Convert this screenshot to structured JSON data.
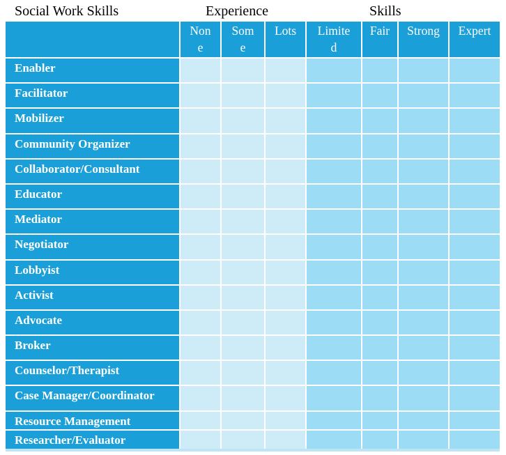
{
  "titles": {
    "main": "Social Work Skills",
    "experience_group": "Experience",
    "skills_group": "Skills"
  },
  "table": {
    "columns": [
      {
        "label": "None",
        "display": "Non\ne",
        "group": "Experience",
        "cell_shade": "light"
      },
      {
        "label": "Some",
        "display": "Som\ne",
        "group": "Experience",
        "cell_shade": "light"
      },
      {
        "label": "Lots",
        "display": "Lots",
        "group": "Experience",
        "cell_shade": "light"
      },
      {
        "label": "Limited",
        "display": "Limite\nd",
        "group": "Skills",
        "cell_shade": "medium"
      },
      {
        "label": "Fair",
        "display": "Fair",
        "group": "Skills",
        "cell_shade": "medium"
      },
      {
        "label": "Strong",
        "display": "Strong",
        "group": "Skills",
        "cell_shade": "medium"
      },
      {
        "label": "Expert",
        "display": "Expert",
        "group": "Skills",
        "cell_shade": "medium"
      }
    ],
    "row_labels": [
      "Enabler",
      "Facilitator",
      "Mobilizer",
      "Community Organizer",
      "Collaborator/Consultant",
      "Educator",
      "Mediator",
      "Negotiator",
      "Lobbyist",
      "Activist",
      "Advocate",
      "Broker",
      "Counselor/Therapist",
      "Case Manager/Coordinator",
      "Resource Management",
      "Researcher/Evaluator"
    ],
    "cell_value_empty": ""
  },
  "colors": {
    "header_blue": "#1A9FD8",
    "light_cell": "#CEEBF8",
    "medium_cell": "#9CDCF5",
    "bottom_border": "#BFE4F4",
    "grid_line": "#FFFFFF",
    "title_text": "#000000",
    "header_text": "#FFFFFF"
  }
}
